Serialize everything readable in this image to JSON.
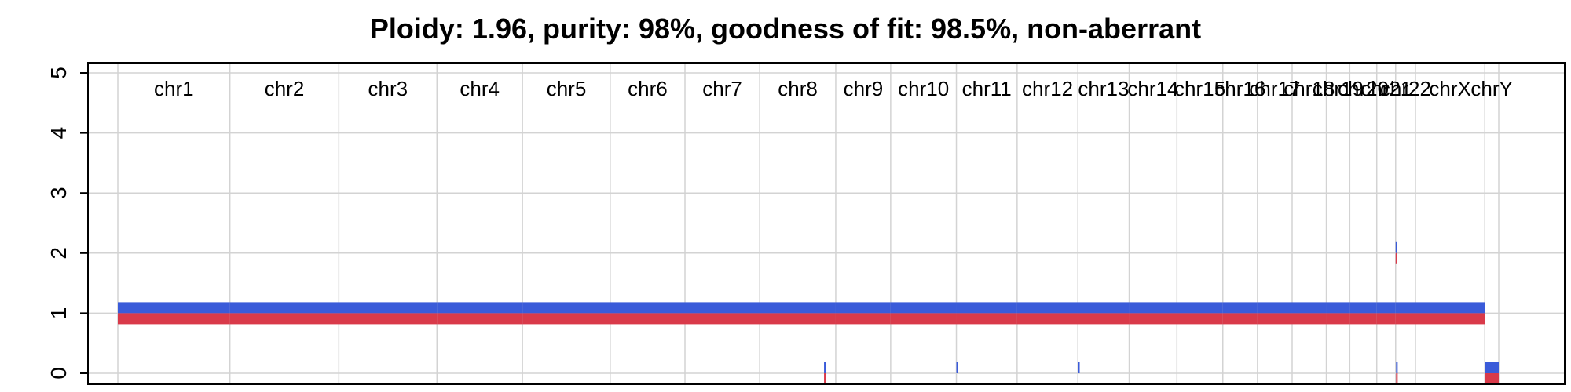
{
  "chart_data": {
    "type": "bar",
    "title": "Ploidy: 1.96, purity: 98%, goodness of fit: 98.5%, non-aberrant",
    "xlabel": "",
    "ylabel": "",
    "ylim": [
      0,
      5
    ],
    "yticks": [
      0,
      1,
      2,
      3,
      4,
      5
    ],
    "grid": true,
    "colors": {
      "major": "#3a5bd9",
      "minor": "#d93a4a",
      "grid": "#d3d3d3"
    },
    "chromosomes": [
      {
        "name": "chr1",
        "length_mb": 249
      },
      {
        "name": "chr2",
        "length_mb": 242
      },
      {
        "name": "chr3",
        "length_mb": 218
      },
      {
        "name": "chr4",
        "length_mb": 190
      },
      {
        "name": "chr5",
        "length_mb": 195
      },
      {
        "name": "chr6",
        "length_mb": 166
      },
      {
        "name": "chr7",
        "length_mb": 166
      },
      {
        "name": "chr8",
        "length_mb": 169
      },
      {
        "name": "chr9",
        "length_mb": 122
      },
      {
        "name": "chr10",
        "length_mb": 146
      },
      {
        "name": "chr11",
        "length_mb": 135
      },
      {
        "name": "chr12",
        "length_mb": 135
      },
      {
        "name": "chr13",
        "length_mb": 114
      },
      {
        "name": "chr14",
        "length_mb": 106
      },
      {
        "name": "chr15",
        "length_mb": 102
      },
      {
        "name": "chr16",
        "length_mb": 77
      },
      {
        "name": "chr17",
        "length_mb": 77
      },
      {
        "name": "chr18",
        "length_mb": 76
      },
      {
        "name": "chr19",
        "length_mb": 52
      },
      {
        "name": "chr20",
        "length_mb": 60
      },
      {
        "name": "chr21",
        "length_mb": 42
      },
      {
        "name": "chr22",
        "length_mb": 44
      },
      {
        "name": "chrX",
        "length_mb": 154
      },
      {
        "name": "chrY",
        "length_mb": 31
      }
    ],
    "series": [
      {
        "name": "major",
        "segments": [
          {
            "chrom": "chr1",
            "start": 0,
            "end": 249,
            "cn": 1
          },
          {
            "chrom": "chr2",
            "start": 0,
            "end": 242,
            "cn": 1
          },
          {
            "chrom": "chr3",
            "start": 0,
            "end": 218,
            "cn": 1
          },
          {
            "chrom": "chr4",
            "start": 0,
            "end": 190,
            "cn": 1
          },
          {
            "chrom": "chr5",
            "start": 0,
            "end": 195,
            "cn": 1
          },
          {
            "chrom": "chr6",
            "start": 0,
            "end": 166,
            "cn": 1
          },
          {
            "chrom": "chr7",
            "start": 0,
            "end": 166,
            "cn": 1
          },
          {
            "chrom": "chr8",
            "start": 0,
            "end": 169,
            "cn": 1
          },
          {
            "chrom": "chr9",
            "start": 0,
            "end": 122,
            "cn": 1
          },
          {
            "chrom": "chr10",
            "start": 0,
            "end": 146,
            "cn": 1
          },
          {
            "chrom": "chr11",
            "start": 0,
            "end": 135,
            "cn": 1
          },
          {
            "chrom": "chr12",
            "start": 0,
            "end": 135,
            "cn": 1
          },
          {
            "chrom": "chr13",
            "start": 0,
            "end": 114,
            "cn": 1
          },
          {
            "chrom": "chr14",
            "start": 0,
            "end": 106,
            "cn": 1
          },
          {
            "chrom": "chr15",
            "start": 0,
            "end": 102,
            "cn": 1
          },
          {
            "chrom": "chr16",
            "start": 0,
            "end": 77,
            "cn": 1
          },
          {
            "chrom": "chr17",
            "start": 0,
            "end": 77,
            "cn": 1
          },
          {
            "chrom": "chr18",
            "start": 0,
            "end": 76,
            "cn": 1
          },
          {
            "chrom": "chr19",
            "start": 0,
            "end": 52,
            "cn": 1
          },
          {
            "chrom": "chr20",
            "start": 0,
            "end": 60,
            "cn": 1
          },
          {
            "chrom": "chr21",
            "start": 0,
            "end": 42,
            "cn": 1
          },
          {
            "chrom": "chr22",
            "start": 0,
            "end": 44,
            "cn": 1
          },
          {
            "chrom": "chrX",
            "start": 0,
            "end": 154,
            "cn": 1
          },
          {
            "chrom": "chrY",
            "start": 0,
            "end": 31,
            "cn": 0
          },
          {
            "chrom": "chr8",
            "start": 143,
            "end": 145,
            "cn": 0
          },
          {
            "chrom": "chr11",
            "start": 0,
            "end": 2,
            "cn": 0
          },
          {
            "chrom": "chr13",
            "start": 0,
            "end": 4,
            "cn": 0
          },
          {
            "chrom": "chr22",
            "start": 0,
            "end": 2,
            "cn": 2
          },
          {
            "chrom": "chr22",
            "start": 1,
            "end": 3,
            "cn": 0
          }
        ]
      },
      {
        "name": "minor",
        "segments": [
          {
            "chrom": "chr1",
            "start": 0,
            "end": 249,
            "cn": 1
          },
          {
            "chrom": "chr2",
            "start": 0,
            "end": 242,
            "cn": 1
          },
          {
            "chrom": "chr3",
            "start": 0,
            "end": 218,
            "cn": 1
          },
          {
            "chrom": "chr4",
            "start": 0,
            "end": 190,
            "cn": 1
          },
          {
            "chrom": "chr5",
            "start": 0,
            "end": 195,
            "cn": 1
          },
          {
            "chrom": "chr6",
            "start": 0,
            "end": 166,
            "cn": 1
          },
          {
            "chrom": "chr7",
            "start": 0,
            "end": 166,
            "cn": 1
          },
          {
            "chrom": "chr8",
            "start": 0,
            "end": 169,
            "cn": 1
          },
          {
            "chrom": "chr9",
            "start": 0,
            "end": 122,
            "cn": 1
          },
          {
            "chrom": "chr10",
            "start": 0,
            "end": 146,
            "cn": 1
          },
          {
            "chrom": "chr11",
            "start": 0,
            "end": 135,
            "cn": 1
          },
          {
            "chrom": "chr12",
            "start": 0,
            "end": 135,
            "cn": 1
          },
          {
            "chrom": "chr13",
            "start": 0,
            "end": 114,
            "cn": 1
          },
          {
            "chrom": "chr14",
            "start": 0,
            "end": 106,
            "cn": 1
          },
          {
            "chrom": "chr15",
            "start": 0,
            "end": 102,
            "cn": 1
          },
          {
            "chrom": "chr16",
            "start": 0,
            "end": 77,
            "cn": 1
          },
          {
            "chrom": "chr17",
            "start": 0,
            "end": 77,
            "cn": 1
          },
          {
            "chrom": "chr18",
            "start": 0,
            "end": 76,
            "cn": 1
          },
          {
            "chrom": "chr19",
            "start": 0,
            "end": 52,
            "cn": 1
          },
          {
            "chrom": "chr20",
            "start": 0,
            "end": 60,
            "cn": 1
          },
          {
            "chrom": "chr21",
            "start": 0,
            "end": 42,
            "cn": 1
          },
          {
            "chrom": "chr22",
            "start": 0,
            "end": 44,
            "cn": 1
          },
          {
            "chrom": "chrX",
            "start": 0,
            "end": 154,
            "cn": 1
          },
          {
            "chrom": "chrY",
            "start": 0,
            "end": 31,
            "cn": 0
          },
          {
            "chrom": "chr8",
            "start": 143,
            "end": 145,
            "cn": 0
          },
          {
            "chrom": "chr22",
            "start": 0,
            "end": 2,
            "cn": 2
          },
          {
            "chrom": "chr22",
            "start": 1,
            "end": 3,
            "cn": 0
          }
        ]
      }
    ]
  }
}
